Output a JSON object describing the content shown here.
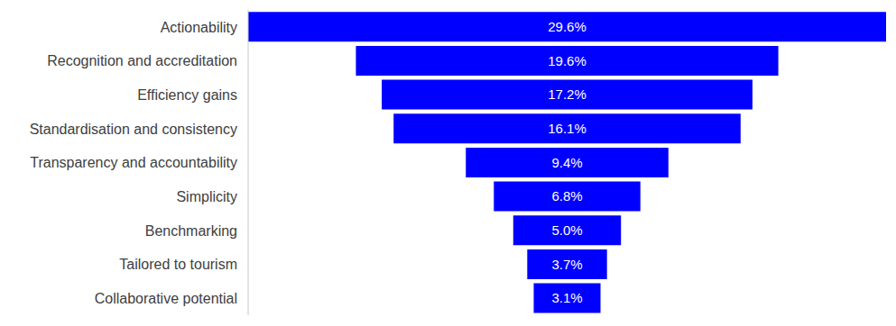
{
  "chart_data": {
    "type": "bar",
    "orientation": "horizontal",
    "categories": [
      "Actionability",
      "Recognition and accreditation",
      "Efficiency gains",
      "Standardisation and consistency",
      "Transparency and accountability",
      "Simplicity",
      "Benchmarking",
      "Tailored to tourism",
      "Collaborative potential"
    ],
    "values": [
      29.6,
      19.6,
      17.2,
      16.1,
      9.4,
      6.8,
      5.0,
      3.7,
      3.1
    ],
    "value_labels": [
      "29.6%",
      "19.6%",
      "17.2%",
      "16.1%",
      "9.4%",
      "6.8%",
      "5.0%",
      "3.7%",
      "3.1%"
    ],
    "color": "#0000ff",
    "data_labels": true,
    "tick_labels": "y"
  }
}
